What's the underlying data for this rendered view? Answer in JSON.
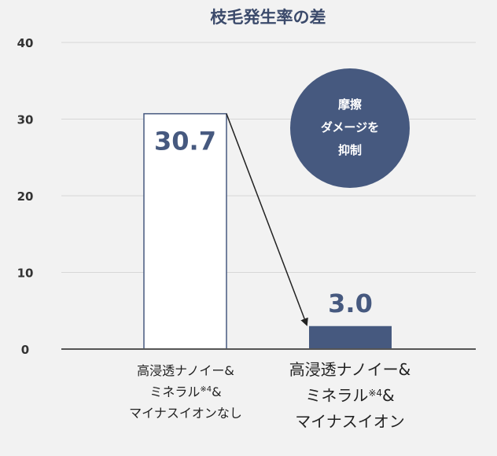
{
  "chart_data": {
    "type": "bar",
    "title": "枝毛発生率の差",
    "xlabel": "",
    "ylabel": "",
    "ylim": [
      0,
      40
    ],
    "yticks": [
      0,
      10,
      20,
      30,
      40
    ],
    "grid": true,
    "categories": [
      {
        "lines": [
          "高浸透ナノイー&",
          "ミネラル",
          "※4",
          "&",
          "マイナスイオンなし"
        ]
      },
      {
        "lines": [
          "高浸透ナノイー&",
          "ミネラル",
          "※4",
          "&",
          "マイナスイオン"
        ]
      }
    ],
    "values": [
      30.7,
      3.0
    ],
    "value_labels": [
      "30.7",
      "3.0"
    ],
    "annotation": {
      "badge_lines": [
        "摩擦",
        "ダメージを",
        "抑制"
      ],
      "arrow": "from bar 1 to bar 2"
    }
  },
  "colors": {
    "accent": "#46597f",
    "bar_empty_fill": "#ffffff",
    "grid": "#d7d7d7",
    "axis": "#555555",
    "title": "#3b4a6b"
  }
}
